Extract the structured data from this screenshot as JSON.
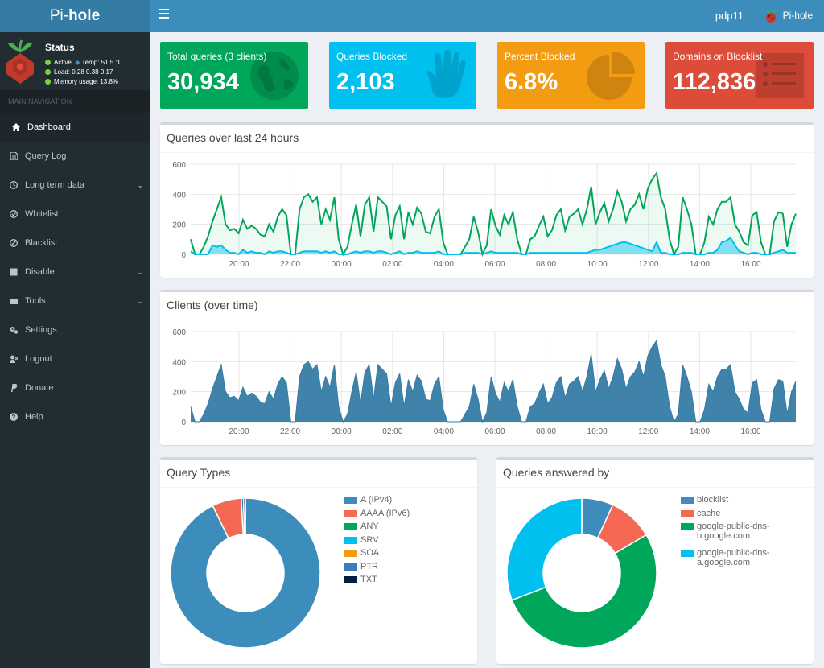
{
  "brand": {
    "pre": "Pi-",
    "bold": "hole"
  },
  "topbar": {
    "user": "pdp11",
    "brand": "Pi-hole"
  },
  "status": {
    "title": "Status",
    "active": "Active",
    "temp": "Temp: 51.5 °C",
    "load": "Load:  0.28  0.38  0.17",
    "memory": "Memory usage:  13.8%"
  },
  "nav": {
    "header": "MAIN NAVIGATION",
    "items": [
      {
        "label": "Dashboard",
        "icon": "home-icon"
      },
      {
        "label": "Query Log",
        "icon": "file-icon"
      },
      {
        "label": "Long term data",
        "icon": "clock-icon"
      },
      {
        "label": "Whitelist",
        "icon": "check-circle-icon"
      },
      {
        "label": "Blacklist",
        "icon": "ban-icon"
      },
      {
        "label": "Disable",
        "icon": "stop-icon"
      },
      {
        "label": "Tools",
        "icon": "folder-icon"
      },
      {
        "label": "Settings",
        "icon": "gears-icon"
      },
      {
        "label": "Logout",
        "icon": "user-times-icon"
      },
      {
        "label": "Donate",
        "icon": "paypal-icon"
      },
      {
        "label": "Help",
        "icon": "question-circle-icon"
      }
    ]
  },
  "cards": [
    {
      "title": "Total queries (3 clients)",
      "value": "30,934",
      "color": "#00a65a",
      "icon": "globe-icon"
    },
    {
      "title": "Queries Blocked",
      "value": "2,103",
      "color": "#00c0ef",
      "icon": "hand-icon"
    },
    {
      "title": "Percent Blocked",
      "value": "6.8%",
      "color": "#f39c12",
      "icon": "pie-chart-icon"
    },
    {
      "title": "Domains on Blocklist",
      "value": "112,836",
      "color": "#dd4b39",
      "icon": "list-icon"
    }
  ],
  "chart_data": [
    {
      "type": "area",
      "title": "Queries over last 24 hours",
      "x_ticks": [
        "20:00",
        "22:00",
        "00:00",
        "02:00",
        "04:00",
        "06:00",
        "08:00",
        "10:00",
        "12:00",
        "14:00",
        "16:00"
      ],
      "y_ticks": [
        "0",
        "200",
        "400",
        "600"
      ],
      "ylim": [
        0,
        600
      ],
      "series": [
        {
          "color": "#00a65a",
          "values": [
            100,
            0,
            0,
            50,
            120,
            220,
            300,
            380,
            200,
            160,
            170,
            140,
            230,
            170,
            190,
            170,
            130,
            120,
            200,
            150,
            250,
            300,
            260,
            0,
            0,
            300,
            380,
            400,
            350,
            380,
            200,
            300,
            230,
            380,
            100,
            0,
            50,
            200,
            330,
            120,
            330,
            380,
            150,
            380,
            350,
            320,
            100,
            260,
            320,
            100,
            280,
            200,
            310,
            270,
            150,
            140,
            250,
            300,
            80,
            0,
            0,
            0,
            0,
            50,
            100,
            250,
            150,
            0,
            60,
            300,
            190,
            130,
            260,
            200,
            280,
            100,
            0,
            0,
            100,
            120,
            190,
            250,
            120,
            160,
            260,
            300,
            160,
            250,
            270,
            300,
            200,
            300,
            450,
            200,
            280,
            340,
            220,
            300,
            420,
            350,
            220,
            300,
            330,
            400,
            300,
            440,
            500,
            540,
            380,
            300,
            100,
            0,
            50,
            380,
            300,
            200,
            0,
            0,
            80,
            250,
            200,
            300,
            350,
            350,
            380,
            200,
            150,
            80,
            60,
            260,
            280,
            80,
            0,
            0,
            220,
            280,
            270,
            50,
            200,
            270
          ]
        },
        {
          "color": "#00c0ef",
          "values": [
            20,
            0,
            0,
            0,
            0,
            60,
            50,
            60,
            30,
            10,
            10,
            0,
            30,
            10,
            20,
            10,
            10,
            0,
            20,
            10,
            20,
            20,
            10,
            0,
            0,
            10,
            20,
            20,
            20,
            20,
            10,
            20,
            10,
            20,
            0,
            0,
            0,
            10,
            20,
            10,
            20,
            20,
            10,
            20,
            20,
            10,
            0,
            10,
            20,
            0,
            10,
            10,
            20,
            10,
            10,
            10,
            10,
            20,
            0,
            0,
            0,
            0,
            0,
            10,
            10,
            10,
            10,
            0,
            10,
            20,
            10,
            10,
            10,
            10,
            10,
            10,
            0,
            0,
            10,
            10,
            10,
            10,
            10,
            10,
            10,
            10,
            10,
            10,
            10,
            10,
            10,
            10,
            20,
            30,
            30,
            40,
            50,
            60,
            70,
            80,
            80,
            70,
            60,
            50,
            40,
            30,
            20,
            80,
            10,
            10,
            0,
            0,
            0,
            10,
            10,
            10,
            0,
            0,
            0,
            10,
            10,
            30,
            80,
            90,
            110,
            60,
            20,
            10,
            0,
            10,
            10,
            0,
            0,
            0,
            10,
            20,
            30,
            10,
            10,
            10
          ]
        }
      ]
    },
    {
      "type": "area",
      "title": "Clients (over time)",
      "x_ticks": [
        "20:00",
        "22:00",
        "00:00",
        "02:00",
        "04:00",
        "06:00",
        "08:00",
        "10:00",
        "12:00",
        "14:00",
        "16:00"
      ],
      "y_ticks": [
        "0",
        "200",
        "400",
        "600"
      ],
      "ylim": [
        0,
        600
      ],
      "series": [
        {
          "color": "#357ca5",
          "values": [
            100,
            0,
            0,
            50,
            120,
            220,
            300,
            380,
            200,
            160,
            170,
            140,
            230,
            170,
            190,
            170,
            130,
            120,
            200,
            150,
            250,
            300,
            260,
            0,
            0,
            300,
            380,
            400,
            350,
            380,
            200,
            300,
            230,
            380,
            100,
            0,
            50,
            200,
            330,
            120,
            330,
            380,
            150,
            380,
            350,
            320,
            100,
            260,
            320,
            100,
            280,
            200,
            310,
            270,
            150,
            140,
            250,
            300,
            80,
            0,
            0,
            0,
            0,
            50,
            100,
            250,
            150,
            0,
            60,
            300,
            190,
            130,
            260,
            200,
            280,
            100,
            0,
            0,
            100,
            120,
            190,
            250,
            120,
            160,
            260,
            300,
            160,
            250,
            270,
            300,
            200,
            300,
            450,
            200,
            280,
            340,
            220,
            300,
            420,
            350,
            220,
            300,
            330,
            400,
            300,
            440,
            500,
            540,
            380,
            300,
            100,
            0,
            50,
            380,
            300,
            200,
            0,
            0,
            80,
            250,
            200,
            300,
            350,
            350,
            380,
            200,
            150,
            80,
            60,
            260,
            280,
            80,
            0,
            0,
            220,
            280,
            270,
            50,
            200,
            270
          ]
        }
      ]
    },
    {
      "type": "pie",
      "title": "Query Types",
      "labels": [
        "A (IPv4)",
        "AAAA (IPv6)",
        "ANY",
        "SRV",
        "SOA",
        "PTR",
        "TXT"
      ],
      "values": [
        92.8,
        6.3,
        0,
        0,
        0,
        0.5,
        0.4
      ],
      "colors": [
        "#3c8dbc",
        "#f56954",
        "#00a65a",
        "#00c0ef",
        "#f39c12",
        "#3c7dbc",
        "#001f3f"
      ]
    },
    {
      "type": "pie",
      "title": "Queries answered by",
      "labels": [
        "blocklist",
        "cache",
        "google-public-dns-b.google.com",
        "google-public-dns-a.google.com"
      ],
      "legend_lines": [
        [
          "blocklist"
        ],
        [
          "cache"
        ],
        [
          "google-public-dns-",
          "b.google.com"
        ],
        [
          "google-public-dns-",
          "a.google.com"
        ]
      ],
      "values": [
        6.8,
        9.7,
        52.6,
        30.9
      ],
      "colors": [
        "#3c8dbc",
        "#f56954",
        "#00a65a",
        "#00c0ef"
      ]
    }
  ]
}
